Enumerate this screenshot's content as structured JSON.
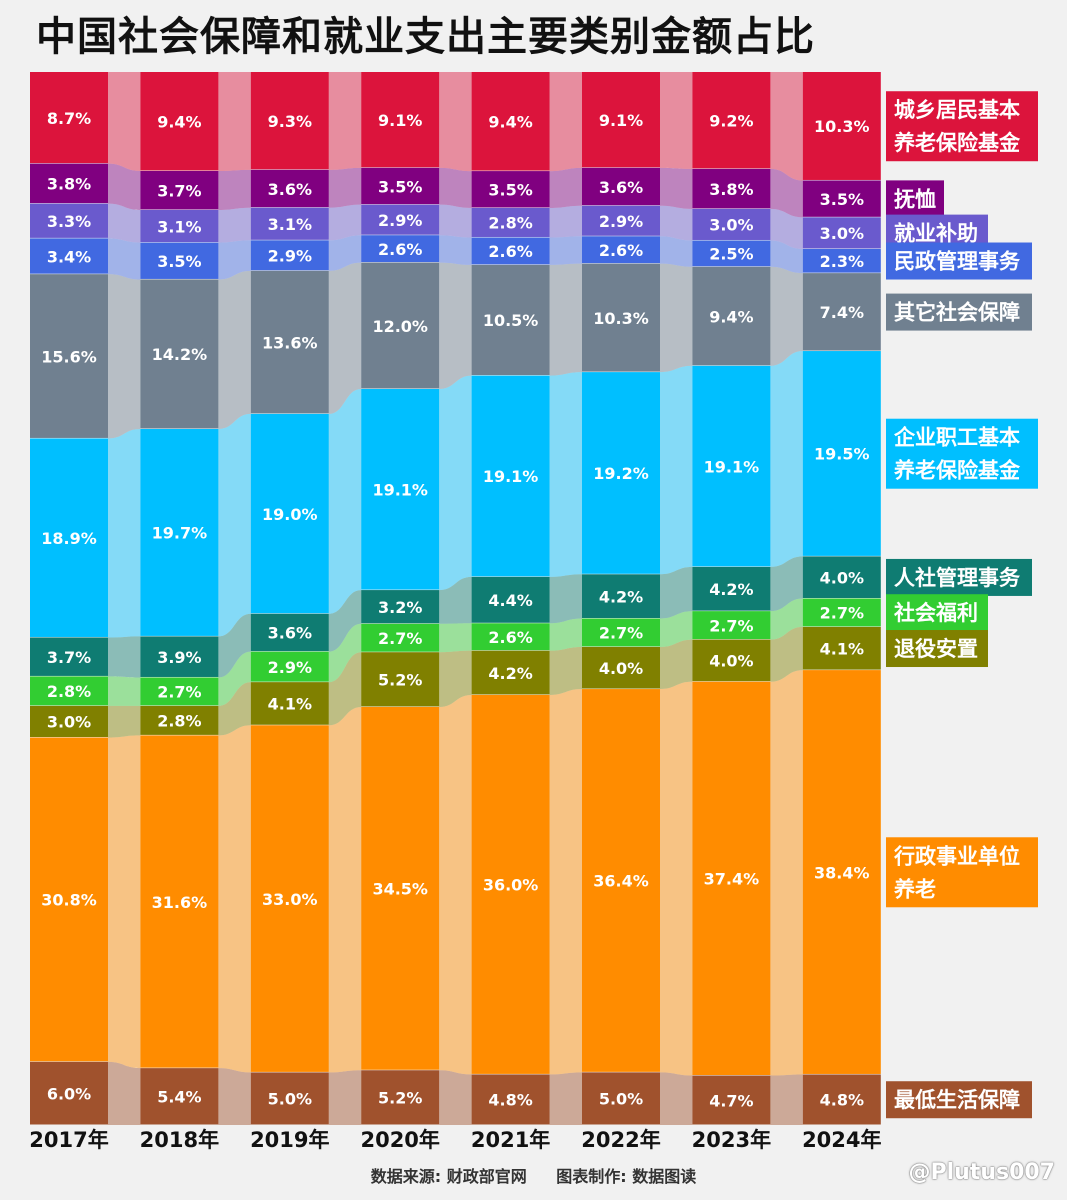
{
  "title": "中国社会保障和就业支出主要类别金额占比",
  "footer": {
    "source": "数据来源: 财政部官网",
    "made_by": "图表制作: 数据图读"
  },
  "credit": "@Plutus007",
  "chart_data": {
    "type": "bar",
    "stacked": true,
    "percent": true,
    "categories": [
      "2017年",
      "2018年",
      "2019年",
      "2020年",
      "2021年",
      "2022年",
      "2023年",
      "2024年"
    ],
    "series": [
      {
        "name": "最低生活保障",
        "color": "#a0522d",
        "values": [
          6.0,
          5.4,
          5.0,
          5.2,
          4.8,
          5.0,
          4.7,
          4.8
        ]
      },
      {
        "name": "行政事业单位养老",
        "color": "#ff8c00",
        "values": [
          30.8,
          31.6,
          33.0,
          34.5,
          36.0,
          36.4,
          37.4,
          38.4
        ]
      },
      {
        "name": "退役安置",
        "color": "#808000",
        "values": [
          3.0,
          2.8,
          4.1,
          5.2,
          4.2,
          4.0,
          4.0,
          4.1
        ]
      },
      {
        "name": "社会福利",
        "color": "#32cd32",
        "values": [
          2.8,
          2.7,
          2.9,
          2.7,
          2.6,
          2.7,
          2.7,
          2.7
        ]
      },
      {
        "name": "人社管理事务",
        "color": "#0f7c72",
        "values": [
          3.7,
          3.9,
          3.6,
          3.2,
          4.4,
          4.2,
          4.2,
          4.0
        ]
      },
      {
        "name": "企业职工基本养老保险基金",
        "color": "#00bfff",
        "values": [
          18.9,
          19.7,
          19.0,
          19.1,
          19.1,
          19.2,
          19.1,
          19.5
        ]
      },
      {
        "name": "其它社会保障",
        "color": "#708090",
        "values": [
          15.6,
          14.2,
          13.6,
          12.0,
          10.5,
          10.3,
          9.4,
          7.4
        ]
      },
      {
        "name": "民政管理事务",
        "color": "#4169e1",
        "values": [
          3.4,
          3.5,
          2.9,
          2.6,
          2.6,
          2.6,
          2.5,
          2.3
        ]
      },
      {
        "name": "就业补助",
        "color": "#6a5acd",
        "values": [
          3.3,
          3.1,
          3.1,
          2.9,
          2.8,
          2.9,
          3.0,
          3.0
        ]
      },
      {
        "name": "抚恤",
        "color": "#800080",
        "values": [
          3.8,
          3.7,
          3.6,
          3.5,
          3.5,
          3.6,
          3.8,
          3.5
        ]
      },
      {
        "name": "城乡居民基本养老保险基金",
        "color": "#dc143c",
        "values": [
          8.7,
          9.4,
          9.3,
          9.1,
          9.4,
          9.1,
          9.2,
          10.3
        ]
      }
    ],
    "legend": [
      {
        "text": [
          "城乡居民基本",
          "养老保险基金"
        ],
        "color": "#dc143c"
      },
      {
        "text": [
          "抚恤"
        ],
        "color": "#800080"
      },
      {
        "text": [
          "就业补助"
        ],
        "color": "#6a5acd"
      },
      {
        "text": [
          "民政管理事务"
        ],
        "color": "#4169e1"
      },
      {
        "text": [
          "其它社会保障"
        ],
        "color": "#708090"
      },
      {
        "text": [
          "企业职工基本",
          "养老保险基金"
        ],
        "color": "#00bfff"
      },
      {
        "text": [
          "人社管理事务"
        ],
        "color": "#0f7c72"
      },
      {
        "text": [
          "社会福利"
        ],
        "color": "#32cd32"
      },
      {
        "text": [
          "退役安置"
        ],
        "color": "#808000"
      },
      {
        "text": [
          "行政事业单位",
          "养老"
        ],
        "color": "#ff8c00"
      },
      {
        "text": [
          "最低生活保障"
        ],
        "color": "#a0522d"
      }
    ]
  }
}
